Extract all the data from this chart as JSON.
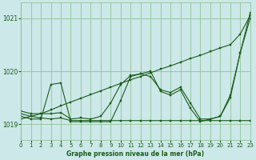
{
  "bg_color": "#cce8e8",
  "grid_color": "#88bb88",
  "line_color": "#1a5c1a",
  "title": "Graphe pression niveau de la mer (hPa)",
  "xlim": [
    0,
    23
  ],
  "ylim": [
    1018.7,
    1021.3
  ],
  "yticks": [
    1019,
    1020,
    1021
  ],
  "xticks": [
    0,
    1,
    2,
    3,
    4,
    5,
    6,
    7,
    8,
    9,
    10,
    11,
    12,
    13,
    14,
    15,
    16,
    17,
    18,
    19,
    20,
    21,
    22,
    23
  ],
  "series": [
    [
      1019.1,
      1019.15,
      1019.2,
      1019.27,
      1019.35,
      1019.42,
      1019.49,
      1019.56,
      1019.63,
      1019.7,
      1019.77,
      1019.84,
      1019.9,
      1019.97,
      1020.04,
      1020.1,
      1020.17,
      1020.24,
      1020.3,
      1020.37,
      1020.44,
      1020.5,
      1020.7,
      1021.05
    ],
    [
      1019.15,
      1019.1,
      1019.1,
      1019.75,
      1019.78,
      1019.05,
      1019.05,
      1019.05,
      1019.05,
      1019.05,
      1019.45,
      1019.9,
      1019.95,
      1020.0,
      1019.62,
      1019.55,
      1019.65,
      1019.3,
      1019.05,
      1019.1,
      1019.15,
      1019.55,
      1020.35,
      1021.1
    ],
    [
      1019.2,
      1019.15,
      1019.12,
      1019.1,
      1019.12,
      1019.07,
      1019.07,
      1019.07,
      1019.07,
      1019.07,
      1019.07,
      1019.07,
      1019.07,
      1019.07,
      1019.07,
      1019.07,
      1019.07,
      1019.07,
      1019.07,
      1019.07,
      1019.07,
      1019.07,
      1019.07,
      1019.07
    ],
    [
      1019.25,
      1019.2,
      1019.2,
      1019.2,
      1019.22,
      1019.1,
      1019.12,
      1019.1,
      1019.15,
      1019.4,
      1019.75,
      1019.92,
      1019.95,
      1019.9,
      1019.65,
      1019.6,
      1019.7,
      1019.4,
      1019.1,
      1019.1,
      1019.15,
      1019.5,
      1020.35,
      1021.0
    ]
  ]
}
